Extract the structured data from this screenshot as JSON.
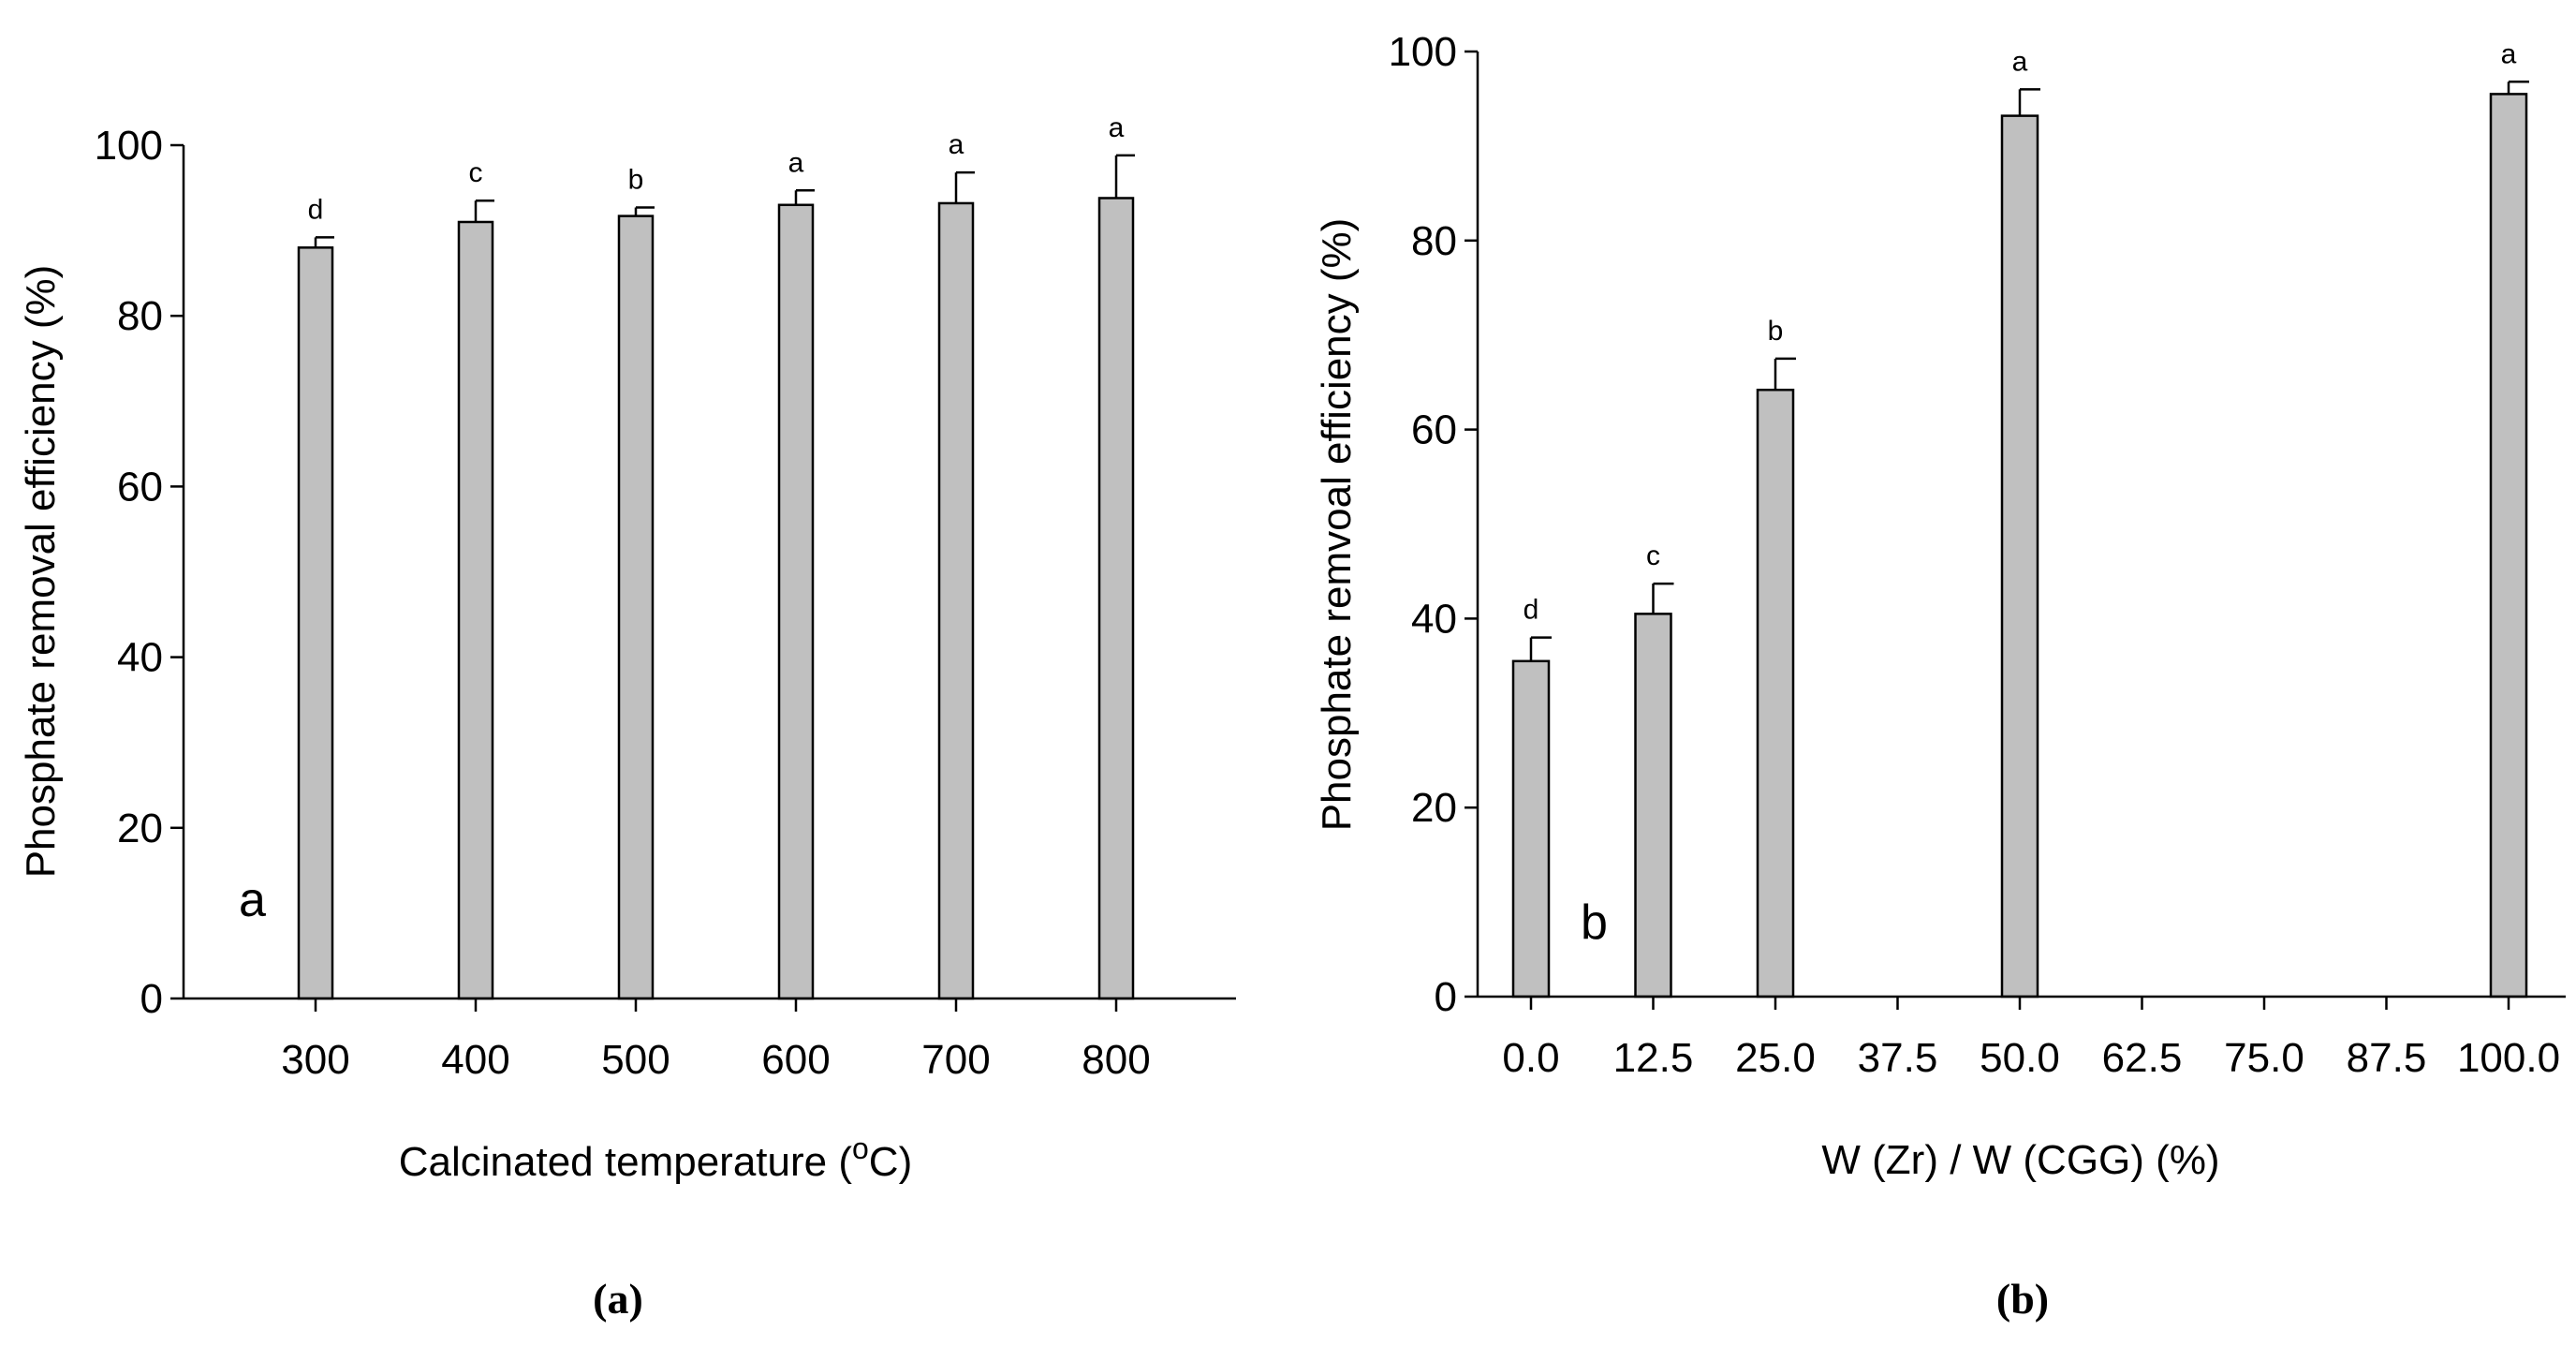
{
  "chart_data": [
    {
      "type": "bar",
      "panel_tag": "a",
      "caption": "(a)",
      "categories": [
        "300",
        "400",
        "500",
        "600",
        "700",
        "800"
      ],
      "values": [
        88,
        91,
        91.7,
        93,
        93.2,
        93.8
      ],
      "errors": [
        1.2,
        2.5,
        1.0,
        1.7,
        3.6,
        5.0
      ],
      "significance": [
        "d",
        "c",
        "b",
        "a",
        "a",
        "a"
      ],
      "xlabel": "Calcinated temperature (",
      "xlabel_sup": "o",
      "xlabel_end": "C)",
      "ylabel": "Phosphate removal efficiency (%)",
      "ylim": [
        0,
        100
      ],
      "yticks": [
        "0",
        "20",
        "40",
        "60",
        "80",
        "100"
      ],
      "bar_color": "#c0c0c0"
    },
    {
      "type": "bar",
      "panel_tag": "b",
      "caption": "(b)",
      "categories": [
        "0.0",
        "12.5",
        "25.0",
        "37.5",
        "50.0",
        "62.5",
        "75.0",
        "87.5",
        "100.0"
      ],
      "values": [
        35.5,
        40.5,
        64.2,
        null,
        93.2,
        null,
        null,
        null,
        95.5
      ],
      "errors": [
        2.5,
        3.2,
        3.3,
        null,
        2.8,
        null,
        null,
        null,
        1.3
      ],
      "significance": [
        "d",
        "c",
        "b",
        "",
        "a",
        "",
        "",
        "",
        "a"
      ],
      "xlabel": "W (Zr) / W (CGG) (%)",
      "ylabel": "Phosphate remvoal efficiency (%)",
      "ylim": [
        0,
        100
      ],
      "yticks": [
        "0",
        "20",
        "40",
        "60",
        "80",
        "100"
      ],
      "bar_color": "#c0c0c0"
    }
  ]
}
